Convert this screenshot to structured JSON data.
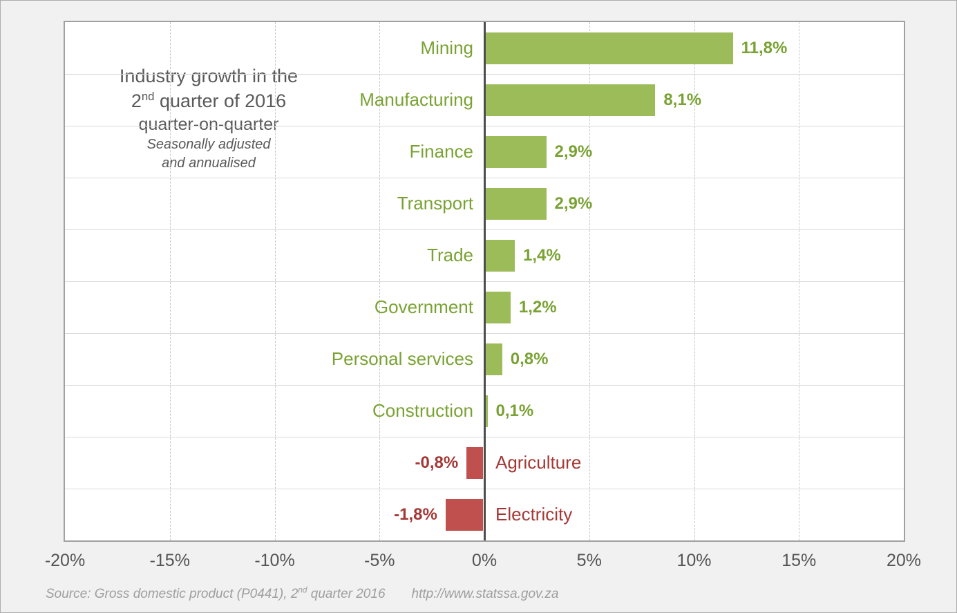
{
  "chart_data": {
    "type": "bar",
    "orientation": "horizontal",
    "title": {
      "line1": "Industry growth in the",
      "line2_pre": "2",
      "line2_sup": "nd",
      "line2_post": " quarter of 2016",
      "line3": "quarter-on-quarter",
      "line4": "Seasonally adjusted",
      "line5": "and annualised"
    },
    "categories": [
      "Mining",
      "Manufacturing",
      "Finance",
      "Transport",
      "Trade",
      "Government",
      "Personal services",
      "Construction",
      "Agriculture",
      "Electricity"
    ],
    "values": [
      11.8,
      8.1,
      2.9,
      2.9,
      1.4,
      1.2,
      0.8,
      0.1,
      -0.8,
      -1.8
    ],
    "value_labels": [
      "11,8%",
      "8,1%",
      "2,9%",
      "2,9%",
      "1,4%",
      "1,2%",
      "0,8%",
      "0,1%",
      "-0,8%",
      "-1,8%"
    ],
    "xlim": [
      -20,
      20
    ],
    "x_ticks": [
      "-20%",
      "-15%",
      "-10%",
      "-5%",
      "0%",
      "5%",
      "10%",
      "15%",
      "20%"
    ],
    "grid": "dashed vertical gridlines every 5%, solid light row separators, legend none",
    "colors": {
      "positive_bar": "#9cbb59",
      "negative_bar": "#c0504d",
      "positive_text": "#79a233",
      "negative_text": "#a43835",
      "zero_line": "#4d4d4d",
      "vgrid": "#c7c7c7",
      "row_line": "#d9d9d9",
      "axis_text": "#545454",
      "title_text": "#595959"
    }
  },
  "footer": {
    "source_pre": "Source: Gross domestic product (P0441), 2",
    "source_sup": "nd",
    "source_post": " quarter 2016",
    "url": "http://www.statssa.gov.za"
  }
}
